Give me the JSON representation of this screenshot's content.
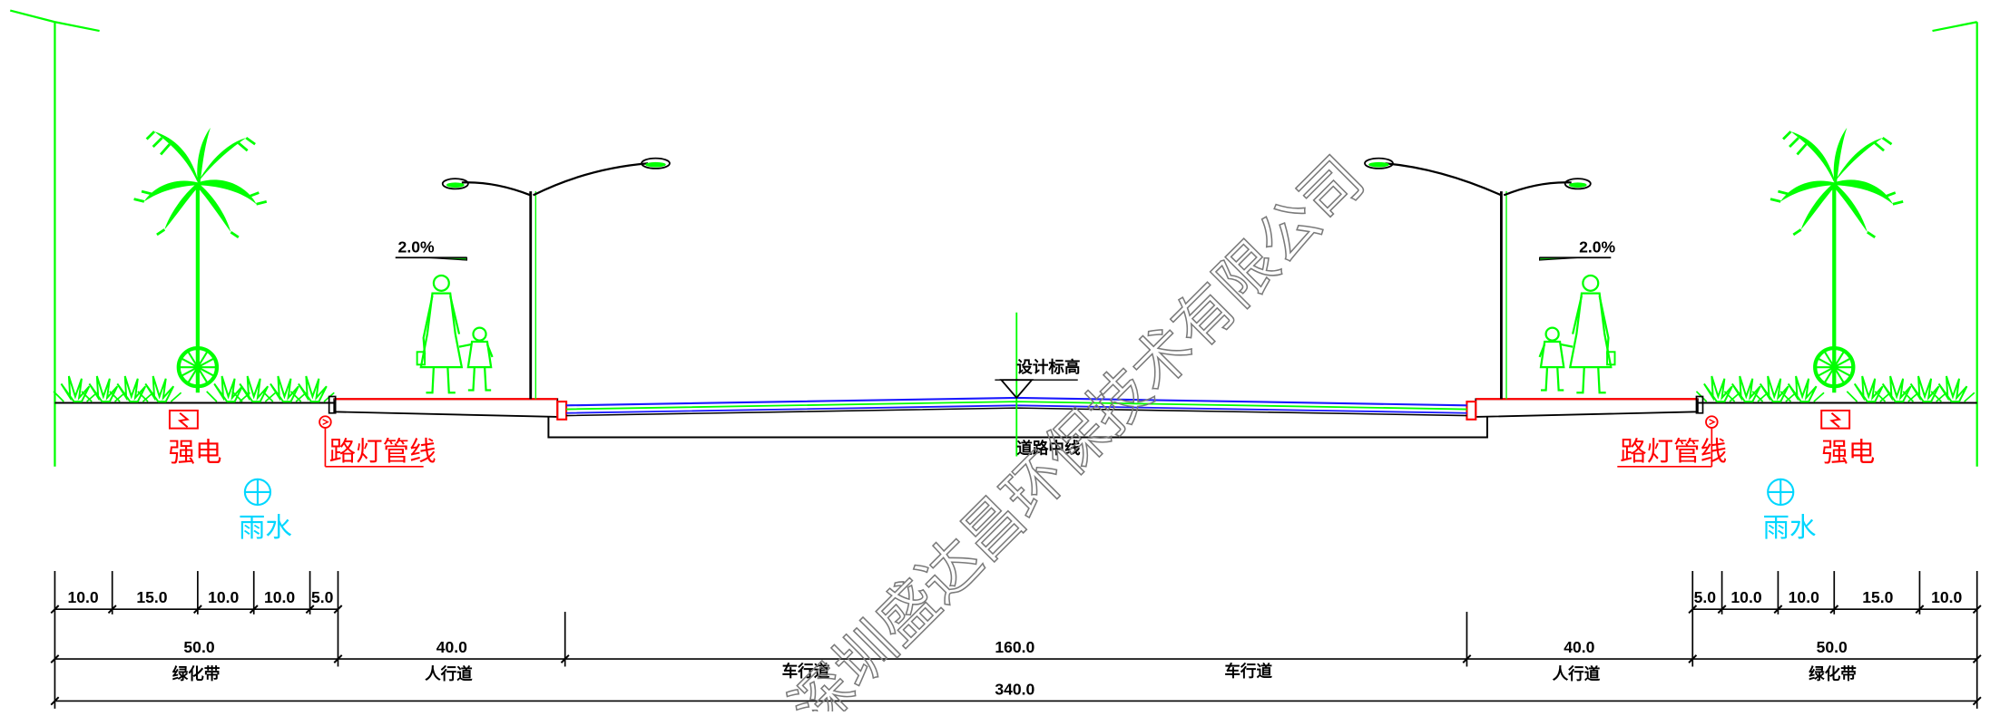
{
  "labels": {
    "design_elevation": "设计标高",
    "road_centerline": "道路中线",
    "slope_left": "2.0%",
    "slope_right": "2.0%",
    "strong_power_left": "强电",
    "strong_power_right": "强电",
    "streetlight_pipe_left": "路灯管线",
    "streetlight_pipe_right": "路灯管线",
    "rain_left": "雨水",
    "rain_right": "雨水",
    "watermark": "深圳盛达昌环保技术有限公司"
  },
  "dimensions": {
    "left_detail": [
      "10.0",
      "15.0",
      "10.0",
      "10.0",
      "5.0"
    ],
    "right_detail": [
      "5.0",
      "10.0",
      "10.0",
      "15.0",
      "10.0"
    ],
    "zones": [
      {
        "value": "50.0",
        "name": "绿化带"
      },
      {
        "value": "40.0",
        "name": "人行道"
      },
      {
        "value": "160.0",
        "name_left": "车行道",
        "name_right": "车行道"
      },
      {
        "value": "40.0",
        "name": "人行道"
      },
      {
        "value": "50.0",
        "name": "绿化带"
      }
    ],
    "total": "340.0"
  },
  "colors": {
    "green": "#00ff00",
    "red": "#ff0000",
    "cyan": "#00d7ff",
    "blue": "#1a1aff",
    "black": "#000000"
  }
}
